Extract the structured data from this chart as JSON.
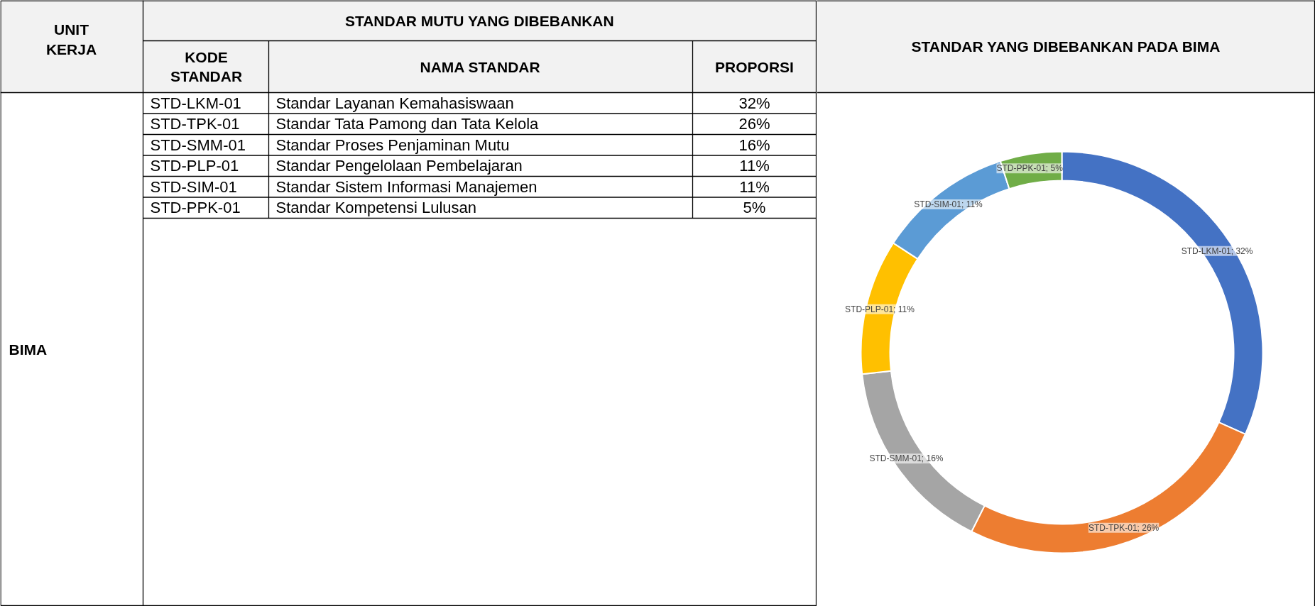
{
  "chart_data": [
    {
      "type": "other",
      "title": "STANDAR MUTU YANG DIBEBANKAN",
      "annotations": [
        "UNIT KERJA",
        "KODE STANDAR",
        "NAMA STANDAR",
        "PROPORSI",
        "BIMA",
        "STD-LKM-01",
        "Standar Layanan Kemahasiswaan",
        "32%",
        "STD-TPK-01",
        "Standar Tata Pamong dan Tata Kelola",
        "26%",
        "STD-SMM-01",
        "Standar Proses Penjaminan Mutu",
        "16%",
        "STD-PLP-01",
        "Standar Pengelolaan Pembelajaran",
        "11%",
        "STD-SIM-01",
        "Standar Sistem Informasi Manajemen",
        "11%",
        "STD-PPK-01",
        "Standar Kompetensi Lulusan",
        "5%"
      ]
    },
    {
      "type": "donut",
      "title": "STANDAR YANG DIBEBANKAN PADA BIMA",
      "categories": [
        "STD-LKM-01",
        "STD-TPK-01",
        "STD-SMM-01",
        "STD-PLP-01",
        "STD-SIM-01",
        "STD-PPK-01"
      ],
      "values": [
        32,
        26,
        16,
        11,
        11,
        5
      ],
      "colors": [
        "#4472c4",
        "#ed7d31",
        "#a5a5a5",
        "#ffc000",
        "#5b9bd5",
        "#70ad47"
      ],
      "value_labels": [
        "; 32%",
        "; 26%",
        "; 16%",
        "; 11%",
        "; 11%",
        "; 5%"
      ]
    }
  ]
}
